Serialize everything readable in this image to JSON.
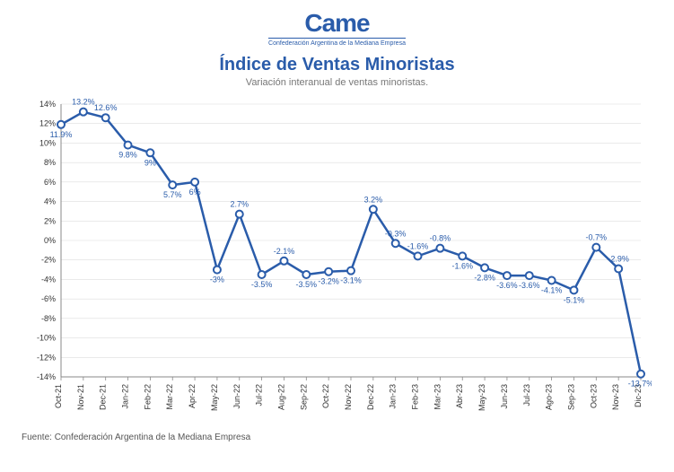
{
  "logo": {
    "text": "Came",
    "tagline": "Confederación Argentina de la Mediana Empresa"
  },
  "title": "Índice de Ventas Minoristas",
  "subtitle": "Variación interanual de ventas minoristas.",
  "source": "Fuente: Confederación Argentina de la Mediana Empresa",
  "chart": {
    "type": "line",
    "background_color": "#ffffff",
    "line_color": "#2a5caa",
    "line_width": 2.5,
    "marker_fill": "#ffffff",
    "marker_stroke": "#2a5caa",
    "marker_radius": 4,
    "marker_stroke_width": 2,
    "grid_color": "#dddddd",
    "grid_width": 0.6,
    "axis_color": "#888888",
    "axis_width": 1,
    "label_color": "#2a5caa",
    "label_fontsize": 9,
    "tick_color": "#333333",
    "tick_fontsize": 9,
    "xlabel_fontsize": 9,
    "ylim": [
      -14,
      14
    ],
    "ytick_step": 2,
    "ytick_suffix": "%",
    "categories": [
      "Oct-21",
      "Nov-21",
      "Dec-21",
      "Jan-22",
      "Feb-22",
      "Mar-22",
      "Apr-22",
      "May-22",
      "Jun-22",
      "Jul-22",
      "Aug-22",
      "Sep-22",
      "Oct-22",
      "Nov-22",
      "Dec-22",
      "Jan-23",
      "Feb-23",
      "Mar-23",
      "Abr-23",
      "May-23",
      "Jun-23",
      "Jul-23",
      "Ago-23",
      "Sep-23",
      "Oct-23",
      "Nov-23",
      "Dic-23"
    ],
    "values": [
      11.9,
      13.2,
      12.6,
      9.8,
      9.0,
      5.7,
      6.0,
      -3.0,
      2.7,
      -3.5,
      -2.1,
      -3.5,
      -3.2,
      -3.1,
      3.2,
      -0.3,
      -1.6,
      -0.8,
      -1.6,
      -2.8,
      -3.6,
      -3.6,
      -4.1,
      -5.1,
      -0.7,
      -2.9,
      -13.7
    ],
    "label_show": [
      true,
      true,
      true,
      true,
      true,
      true,
      true,
      true,
      true,
      true,
      true,
      true,
      true,
      true,
      true,
      true,
      true,
      true,
      true,
      true,
      true,
      true,
      true,
      true,
      true,
      true,
      true
    ],
    "label_pos": [
      "below",
      "above",
      "above",
      "below",
      "below",
      "below",
      "below",
      "below",
      "above",
      "below",
      "above",
      "below",
      "below",
      "below",
      "above",
      "above",
      "above",
      "above",
      "below",
      "below",
      "below",
      "below",
      "below",
      "below",
      "above",
      "above",
      "below"
    ]
  }
}
